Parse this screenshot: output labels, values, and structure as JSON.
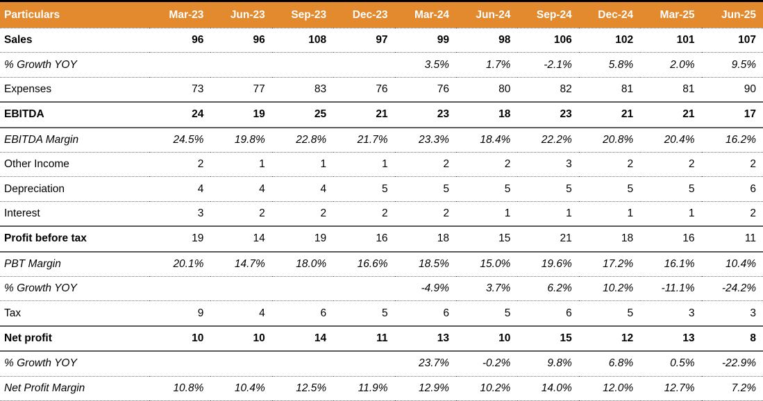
{
  "colors": {
    "header_bg": "#E3892E",
    "header_text": "#FFFFFF",
    "top_border": "#000000",
    "solid_line": "#595959",
    "dotted_line": "#6B6B6B",
    "text": "#000000"
  },
  "chart_data": {
    "type": "table",
    "columns": [
      "Particulars",
      "Mar-23",
      "Jun-23",
      "Sep-23",
      "Dec-23",
      "Mar-24",
      "Jun-24",
      "Sep-24",
      "Dec-24",
      "Mar-25",
      "Jun-25"
    ],
    "rows": [
      {
        "label": "Sales",
        "style": "bold",
        "border_bottom": "dotted",
        "values": [
          "96",
          "96",
          "108",
          "97",
          "99",
          "98",
          "106",
          "102",
          "101",
          "107"
        ]
      },
      {
        "label": "% Growth YOY",
        "style": "italic",
        "border_bottom": "dotted",
        "values": [
          "",
          "",
          "",
          "",
          "3.5%",
          "1.7%",
          "-2.1%",
          "5.8%",
          "2.0%",
          "9.5%"
        ]
      },
      {
        "label": "Expenses",
        "style": "normal",
        "border_bottom": "solid",
        "values": [
          "73",
          "77",
          "83",
          "76",
          "76",
          "80",
          "82",
          "81",
          "81",
          "90"
        ]
      },
      {
        "label": "EBITDA",
        "style": "bold",
        "border_bottom": "solid",
        "values": [
          "24",
          "19",
          "25",
          "21",
          "23",
          "18",
          "23",
          "21",
          "21",
          "17"
        ]
      },
      {
        "label": "EBITDA Margin",
        "style": "italic",
        "border_bottom": "dotted",
        "values": [
          "24.5%",
          "19.8%",
          "22.8%",
          "21.7%",
          "23.3%",
          "18.4%",
          "22.2%",
          "20.8%",
          "20.4%",
          "16.2%"
        ]
      },
      {
        "label": "Other Income",
        "style": "normal",
        "border_bottom": "dotted",
        "values": [
          "2",
          "1",
          "1",
          "1",
          "2",
          "2",
          "3",
          "2",
          "2",
          "2"
        ]
      },
      {
        "label": "Depreciation",
        "style": "normal",
        "border_bottom": "dotted",
        "values": [
          "4",
          "4",
          "4",
          "5",
          "5",
          "5",
          "5",
          "5",
          "5",
          "6"
        ]
      },
      {
        "label": "Interest",
        "style": "normal",
        "border_bottom": "solid",
        "values": [
          "3",
          "2",
          "2",
          "2",
          "2",
          "1",
          "1",
          "1",
          "1",
          "2"
        ]
      },
      {
        "label": "Profit before tax",
        "style": "bold-label",
        "border_bottom": "solid",
        "values": [
          "19",
          "14",
          "19",
          "16",
          "18",
          "15",
          "21",
          "18",
          "16",
          "11"
        ]
      },
      {
        "label": "PBT Margin",
        "style": "italic",
        "border_bottom": "dotted",
        "values": [
          "20.1%",
          "14.7%",
          "18.0%",
          "16.6%",
          "18.5%",
          "15.0%",
          "19.6%",
          "17.2%",
          "16.1%",
          "10.4%"
        ]
      },
      {
        "label": "% Growth YOY",
        "style": "italic",
        "border_bottom": "dotted",
        "values": [
          "",
          "",
          "",
          "",
          "-4.9%",
          "3.7%",
          "6.2%",
          "10.2%",
          "-11.1%",
          "-24.2%"
        ]
      },
      {
        "label": "Tax",
        "style": "normal",
        "border_bottom": "solid",
        "values": [
          "9",
          "4",
          "6",
          "5",
          "6",
          "5",
          "6",
          "5",
          "3",
          "3"
        ]
      },
      {
        "label": "Net profit",
        "style": "bold",
        "border_bottom": "solid",
        "values": [
          "10",
          "10",
          "14",
          "11",
          "13",
          "10",
          "15",
          "12",
          "13",
          "8"
        ]
      },
      {
        "label": "% Growth YOY",
        "style": "italic",
        "border_bottom": "dotted",
        "values": [
          "",
          "",
          "",
          "",
          "23.7%",
          "-0.2%",
          "9.8%",
          "6.8%",
          "0.5%",
          "-22.9%"
        ]
      },
      {
        "label": "Net Profit Margin",
        "style": "italic",
        "border_bottom": "dotted",
        "values": [
          "10.8%",
          "10.4%",
          "12.5%",
          "11.9%",
          "12.9%",
          "10.2%",
          "14.0%",
          "12.0%",
          "12.7%",
          "7.2%"
        ]
      }
    ]
  }
}
